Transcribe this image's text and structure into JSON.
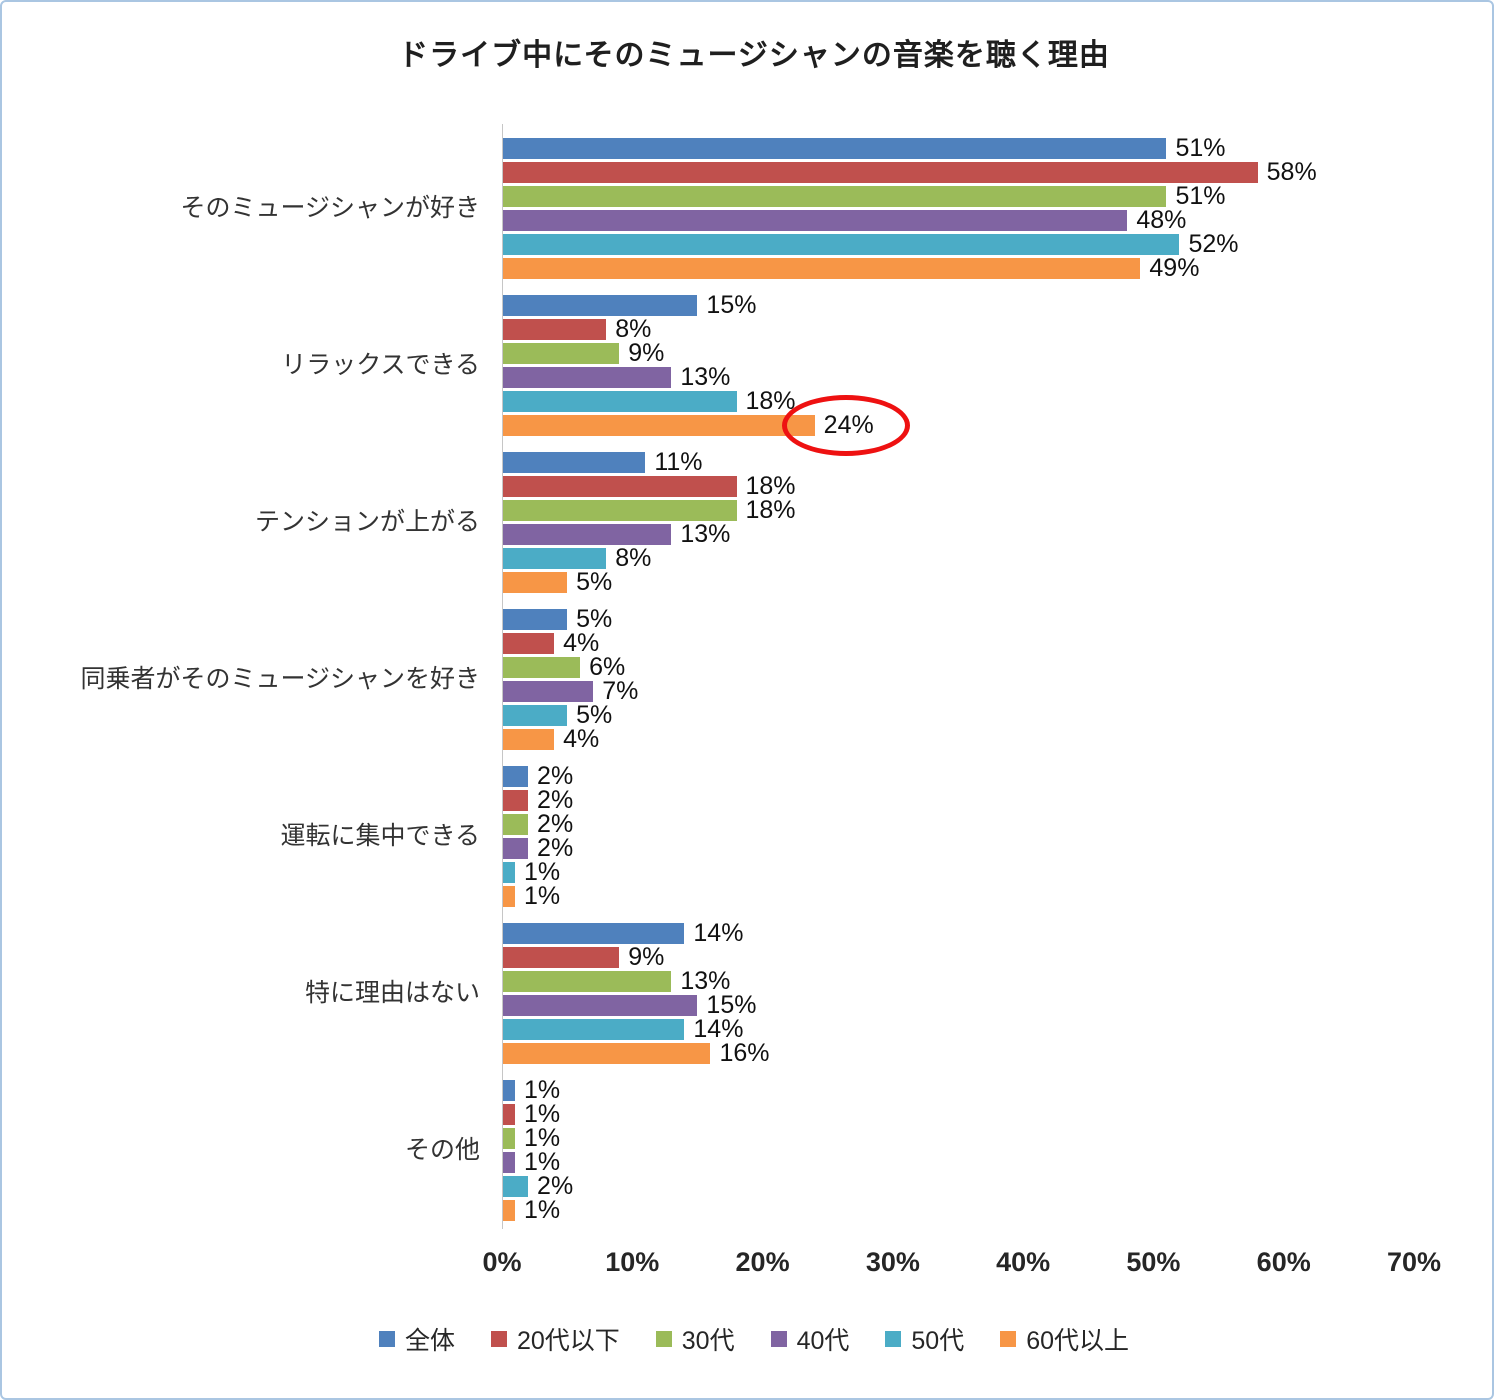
{
  "chart_data": {
    "type": "bar",
    "orientation": "horizontal",
    "title": "ドライブ中にそのミュージシャンの音楽を聴く理由",
    "categories": [
      "そのミュージシャンが好き",
      "リラックスできる",
      "テンションが上がる",
      "同乗者がそのミュージシャンを好き",
      "運転に集中できる",
      "特に理由はない",
      "その他"
    ],
    "series": [
      {
        "name": "全体",
        "color": "#4F81BD",
        "values": [
          51,
          15,
          11,
          5,
          2,
          14,
          1
        ]
      },
      {
        "name": "20代以下",
        "color": "#C0504D",
        "values": [
          58,
          8,
          18,
          4,
          2,
          9,
          1
        ]
      },
      {
        "name": "30代",
        "color": "#9BBB59",
        "values": [
          51,
          9,
          18,
          6,
          2,
          13,
          1
        ]
      },
      {
        "name": "40代",
        "color": "#8064A2",
        "values": [
          48,
          13,
          13,
          7,
          2,
          15,
          1
        ]
      },
      {
        "name": "50代",
        "color": "#4BACC6",
        "values": [
          52,
          18,
          8,
          5,
          1,
          14,
          2
        ]
      },
      {
        "name": "60代以上",
        "color": "#F79646",
        "values": [
          49,
          24,
          5,
          4,
          1,
          16,
          1
        ]
      }
    ],
    "value_suffix": "%",
    "xlim": [
      0,
      70
    ],
    "x_tick_labels": [
      "0%",
      "10%",
      "20%",
      "30%",
      "40%",
      "50%",
      "60%",
      "70%"
    ],
    "grid": false,
    "legend_position": "bottom",
    "annotation": {
      "shape": "ellipse",
      "color": "#EE1111",
      "target_category": "リラックスできる",
      "target_series": "60代以上",
      "target_label": "24%"
    }
  }
}
